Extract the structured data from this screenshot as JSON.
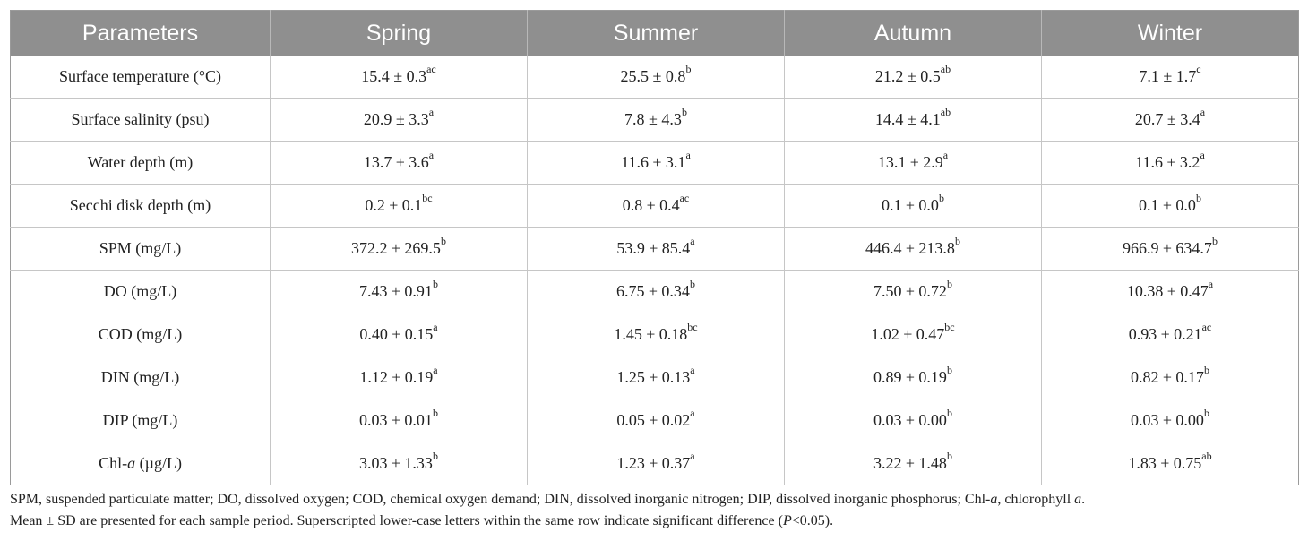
{
  "table": {
    "headers": [
      "Parameters",
      "Spring",
      "Summer",
      "Autumn",
      "Winter"
    ],
    "rows": [
      {
        "label": "Surface temperature (°C)",
        "cells": [
          {
            "value": "15.4 ± 0.3",
            "sup": "ac"
          },
          {
            "value": "25.5 ± 0.8",
            "sup": "b"
          },
          {
            "value": "21.2 ± 0.5",
            "sup": "ab"
          },
          {
            "value": "7.1 ± 1.7",
            "sup": "c"
          }
        ]
      },
      {
        "label": "Surface salinity (psu)",
        "cells": [
          {
            "value": "20.9 ± 3.3",
            "sup": "a"
          },
          {
            "value": "7.8 ± 4.3",
            "sup": "b"
          },
          {
            "value": "14.4 ± 4.1",
            "sup": "ab"
          },
          {
            "value": "20.7 ± 3.4",
            "sup": "a"
          }
        ]
      },
      {
        "label": "Water depth (m)",
        "cells": [
          {
            "value": "13.7 ± 3.6",
            "sup": "a"
          },
          {
            "value": "11.6 ± 3.1",
            "sup": "a"
          },
          {
            "value": "13.1 ± 2.9",
            "sup": "a"
          },
          {
            "value": "11.6 ± 3.2",
            "sup": "a"
          }
        ]
      },
      {
        "label": "Secchi disk depth (m)",
        "cells": [
          {
            "value": "0.2 ± 0.1",
            "sup": "bc"
          },
          {
            "value": "0.8 ± 0.4",
            "sup": "ac"
          },
          {
            "value": "0.1 ± 0.0",
            "sup": "b"
          },
          {
            "value": "0.1 ± 0.0",
            "sup": "b"
          }
        ]
      },
      {
        "label": "SPM (mg/L)",
        "cells": [
          {
            "value": "372.2 ± 269.5",
            "sup": "b"
          },
          {
            "value": "53.9 ± 85.4",
            "sup": "a"
          },
          {
            "value": "446.4 ± 213.8",
            "sup": "b"
          },
          {
            "value": "966.9 ± 634.7",
            "sup": "b"
          }
        ]
      },
      {
        "label": "DO (mg/L)",
        "cells": [
          {
            "value": "7.43 ± 0.91",
            "sup": "b"
          },
          {
            "value": "6.75 ± 0.34",
            "sup": "b"
          },
          {
            "value": "7.50 ± 0.72",
            "sup": "b"
          },
          {
            "value": "10.38 ± 0.47",
            "sup": "a"
          }
        ]
      },
      {
        "label": "COD (mg/L)",
        "cells": [
          {
            "value": "0.40 ± 0.15",
            "sup": "a"
          },
          {
            "value": "1.45 ± 0.18",
            "sup": "bc"
          },
          {
            "value": "1.02 ± 0.47",
            "sup": "bc"
          },
          {
            "value": "0.93 ± 0.21",
            "sup": "ac"
          }
        ]
      },
      {
        "label": "DIN (mg/L)",
        "cells": [
          {
            "value": "1.12 ± 0.19",
            "sup": "a"
          },
          {
            "value": "1.25 ± 0.13",
            "sup": "a"
          },
          {
            "value": "0.89 ± 0.19",
            "sup": "b"
          },
          {
            "value": "0.82 ± 0.17",
            "sup": "b"
          }
        ]
      },
      {
        "label": "DIP (mg/L)",
        "cells": [
          {
            "value": "0.03 ± 0.01",
            "sup": "b"
          },
          {
            "value": "0.05 ± 0.02",
            "sup": "a"
          },
          {
            "value": "0.03 ± 0.00",
            "sup": "b"
          },
          {
            "value": "0.03 ± 0.00",
            "sup": "b"
          }
        ]
      },
      {
        "label": "Chl-",
        "label_italic": "a",
        "label_after": " (µg/L)",
        "cells": [
          {
            "value": "3.03 ± 1.33",
            "sup": "b"
          },
          {
            "value": "1.23 ± 0.37",
            "sup": "a"
          },
          {
            "value": "3.22 ± 1.48",
            "sup": "b"
          },
          {
            "value": "1.83 ± 0.75",
            "sup": "ab"
          }
        ]
      }
    ]
  },
  "notes": {
    "line1_a": "SPM, suspended particulate matter; DO, dissolved oxygen; COD, chemical oxygen demand; DIN, dissolved inorganic nitrogen; DIP, dissolved inorganic phosphorus; Chl-",
    "line1_italic1": "a",
    "line1_b": ", chlorophyll ",
    "line1_italic2": "a",
    "line1_c": ".",
    "line2_a": "Mean ± SD are presented for each sample period. Superscripted lower-case letters within the same row indicate significant difference (",
    "line2_italic": "P",
    "line2_b": "<0.05)."
  },
  "colors": {
    "header_bg": "#8f8f8f",
    "header_text": "#ffffff",
    "grid": "#c6c6c6",
    "text": "#222222"
  }
}
